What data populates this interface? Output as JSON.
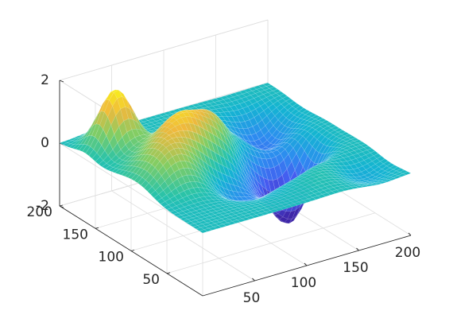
{
  "chart_data": {
    "type": "surface",
    "title": "",
    "xlabel": "",
    "ylabel": "",
    "zlabel": "",
    "grid": true,
    "colormap": "parula",
    "view": "matlab-3d-default",
    "xlim": [
      0,
      200
    ],
    "ylim": [
      0,
      200
    ],
    "zlim": [
      -2,
      2
    ],
    "x_ticks": [
      {
        "value": 50,
        "label": "50"
      },
      {
        "value": 100,
        "label": "100"
      },
      {
        "value": 150,
        "label": "150"
      },
      {
        "value": 200,
        "label": "200"
      }
    ],
    "y_ticks": [
      {
        "value": 50,
        "label": "50"
      },
      {
        "value": 100,
        "label": "100"
      },
      {
        "value": 150,
        "label": "150"
      },
      {
        "value": 200,
        "label": "200"
      }
    ],
    "z_ticks": [
      {
        "value": -2,
        "label": "-2"
      },
      {
        "value": 0,
        "label": "0"
      },
      {
        "value": 2,
        "label": "2"
      }
    ],
    "features": [
      {
        "kind": "peak",
        "x": 30,
        "y": 165,
        "height": 1.9,
        "width": 14
      },
      {
        "kind": "peak",
        "x": 30,
        "y": 85,
        "height": 0.8,
        "width": 18
      },
      {
        "kind": "peak",
        "x": 60,
        "y": 115,
        "height": 1.3,
        "width": 18
      },
      {
        "kind": "peak",
        "x": 95,
        "y": 125,
        "height": 1.1,
        "width": 18
      },
      {
        "kind": "peak",
        "x": 30,
        "y": 110,
        "height": 0.5,
        "width": 20
      },
      {
        "kind": "peak",
        "x": 150,
        "y": 45,
        "height": 0.3,
        "width": 25
      },
      {
        "kind": "trough",
        "x": 150,
        "y": 95,
        "height": -2.2,
        "width": 16
      },
      {
        "kind": "trough",
        "x": 120,
        "y": 80,
        "height": -1.1,
        "width": 18
      },
      {
        "kind": "trough",
        "x": 160,
        "y": 150,
        "height": -1.0,
        "width": 18
      },
      {
        "kind": "trough",
        "x": 80,
        "y": 65,
        "height": -0.7,
        "width": 18
      },
      {
        "kind": "trough",
        "x": 120,
        "y": 110,
        "height": -0.5,
        "width": 16
      },
      {
        "kind": "trough",
        "x": 170,
        "y": 30,
        "height": -0.5,
        "width": 18
      }
    ]
  }
}
